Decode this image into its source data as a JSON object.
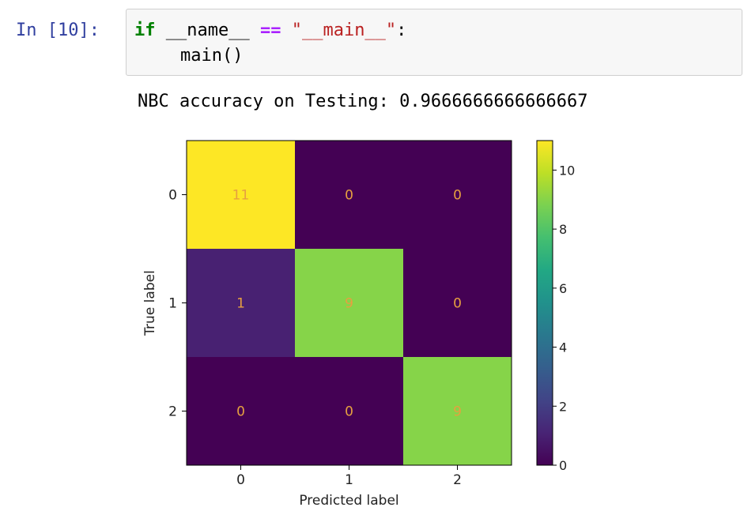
{
  "cell": {
    "prompt": "In [10]:",
    "code": {
      "kw_if": "if",
      "name_var": "__name__",
      "op_eq": "==",
      "str_main": "\"__main__\"",
      "colon": ":",
      "call_main": "main()"
    }
  },
  "output": {
    "text": "NBC accuracy on Testing: 0.9666666666666667"
  },
  "chart_data": {
    "type": "heatmap",
    "title": "",
    "xlabel": "Predicted label",
    "ylabel": "True label",
    "x_ticks": [
      "0",
      "1",
      "2"
    ],
    "y_ticks": [
      "0",
      "1",
      "2"
    ],
    "matrix": [
      [
        11,
        0,
        0
      ],
      [
        1,
        9,
        0
      ],
      [
        0,
        0,
        9
      ]
    ],
    "colormap": "viridis",
    "colorbar": {
      "min": 0,
      "max": 11,
      "ticks": [
        0,
        2,
        4,
        6,
        8,
        10
      ]
    },
    "cell_text_color": "#e6a040"
  }
}
